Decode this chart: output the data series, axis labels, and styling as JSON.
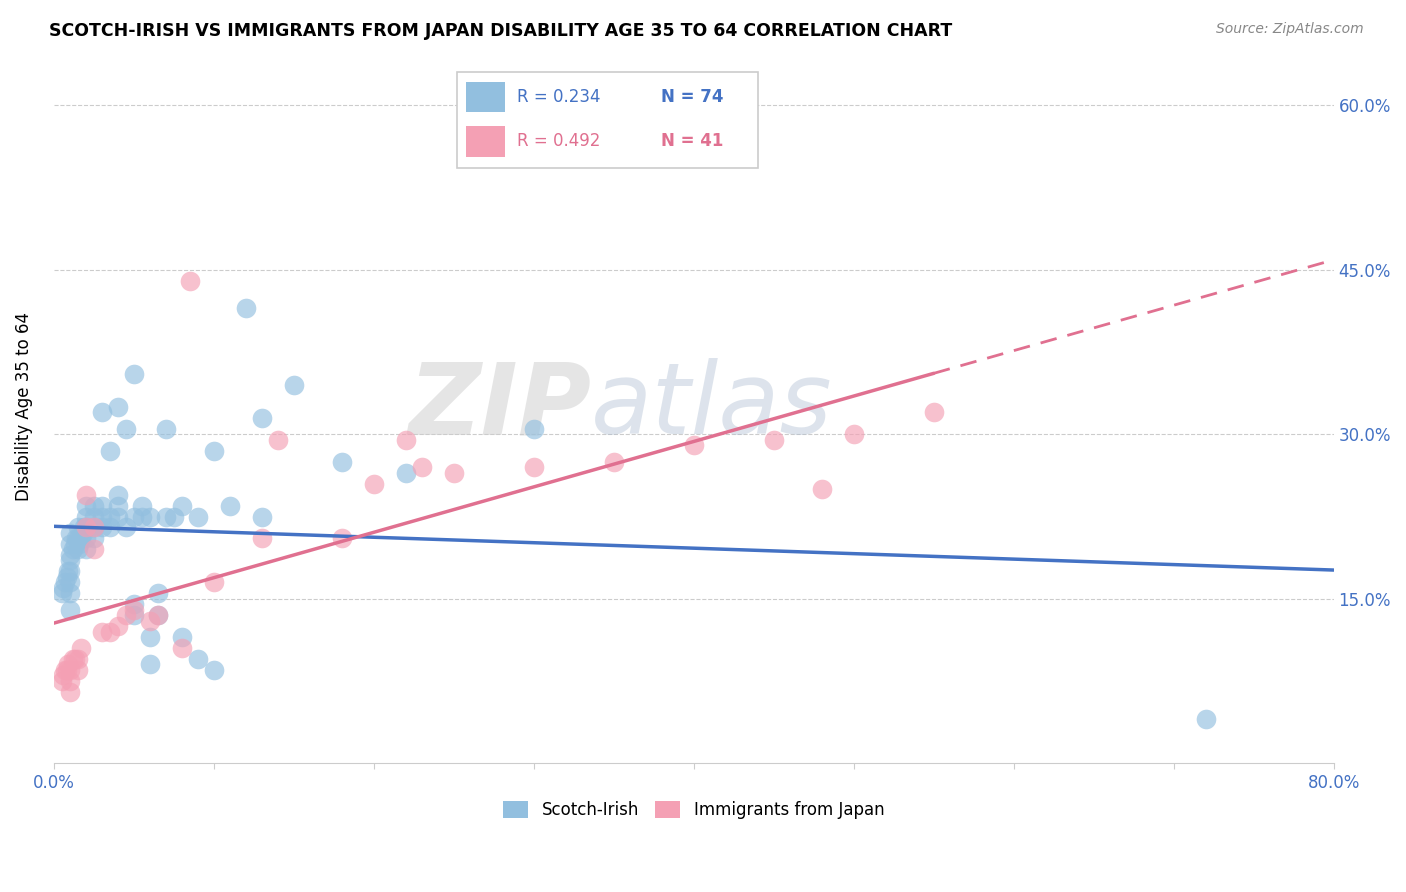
{
  "title": "SCOTCH-IRISH VS IMMIGRANTS FROM JAPAN DISABILITY AGE 35 TO 64 CORRELATION CHART",
  "source": "Source: ZipAtlas.com",
  "ylabel": "Disability Age 35 to 64",
  "ytick_labels": [
    "15.0%",
    "30.0%",
    "45.0%",
    "60.0%"
  ],
  "ytick_values": [
    0.15,
    0.3,
    0.45,
    0.6
  ],
  "xlim": [
    0.0,
    0.8
  ],
  "ylim": [
    0.0,
    0.65
  ],
  "color_blue": "#92BFDF",
  "color_pink": "#F4A0B4",
  "color_blue_line": "#4472C4",
  "color_pink_line": "#E07090",
  "watermark_zip": "ZIP",
  "watermark_atlas": "atlas",
  "scotch_irish_x": [
    0.005,
    0.006,
    0.007,
    0.008,
    0.009,
    0.01,
    0.01,
    0.01,
    0.01,
    0.01,
    0.01,
    0.01,
    0.01,
    0.012,
    0.013,
    0.014,
    0.015,
    0.015,
    0.015,
    0.016,
    0.017,
    0.018,
    0.019,
    0.02,
    0.02,
    0.02,
    0.02,
    0.02,
    0.025,
    0.025,
    0.025,
    0.025,
    0.03,
    0.03,
    0.03,
    0.03,
    0.035,
    0.035,
    0.035,
    0.04,
    0.04,
    0.04,
    0.04,
    0.045,
    0.045,
    0.05,
    0.05,
    0.05,
    0.05,
    0.055,
    0.055,
    0.06,
    0.06,
    0.06,
    0.065,
    0.065,
    0.07,
    0.07,
    0.075,
    0.08,
    0.08,
    0.09,
    0.09,
    0.1,
    0.1,
    0.11,
    0.12,
    0.13,
    0.13,
    0.15,
    0.18,
    0.22,
    0.3,
    0.72
  ],
  "scotch_irish_y": [
    0.155,
    0.16,
    0.165,
    0.17,
    0.175,
    0.14,
    0.155,
    0.165,
    0.175,
    0.185,
    0.19,
    0.2,
    0.21,
    0.195,
    0.2,
    0.205,
    0.195,
    0.205,
    0.215,
    0.2,
    0.205,
    0.21,
    0.215,
    0.195,
    0.205,
    0.215,
    0.225,
    0.235,
    0.205,
    0.215,
    0.225,
    0.235,
    0.215,
    0.225,
    0.235,
    0.32,
    0.215,
    0.225,
    0.285,
    0.225,
    0.235,
    0.245,
    0.325,
    0.215,
    0.305,
    0.135,
    0.145,
    0.225,
    0.355,
    0.225,
    0.235,
    0.09,
    0.115,
    0.225,
    0.135,
    0.155,
    0.225,
    0.305,
    0.225,
    0.115,
    0.235,
    0.095,
    0.225,
    0.085,
    0.285,
    0.235,
    0.415,
    0.225,
    0.315,
    0.345,
    0.275,
    0.265,
    0.305,
    0.04
  ],
  "japan_x": [
    0.005,
    0.006,
    0.007,
    0.008,
    0.009,
    0.01,
    0.01,
    0.01,
    0.012,
    0.013,
    0.015,
    0.015,
    0.017,
    0.02,
    0.02,
    0.025,
    0.025,
    0.03,
    0.035,
    0.04,
    0.045,
    0.05,
    0.06,
    0.065,
    0.08,
    0.085,
    0.1,
    0.13,
    0.14,
    0.18,
    0.2,
    0.22,
    0.23,
    0.25,
    0.3,
    0.35,
    0.4,
    0.45,
    0.48,
    0.5,
    0.55
  ],
  "japan_y": [
    0.075,
    0.08,
    0.085,
    0.085,
    0.09,
    0.065,
    0.075,
    0.085,
    0.095,
    0.095,
    0.085,
    0.095,
    0.105,
    0.215,
    0.245,
    0.195,
    0.215,
    0.12,
    0.12,
    0.125,
    0.135,
    0.14,
    0.13,
    0.135,
    0.105,
    0.44,
    0.165,
    0.205,
    0.295,
    0.205,
    0.255,
    0.295,
    0.27,
    0.265,
    0.27,
    0.275,
    0.29,
    0.295,
    0.25,
    0.3,
    0.32
  ]
}
